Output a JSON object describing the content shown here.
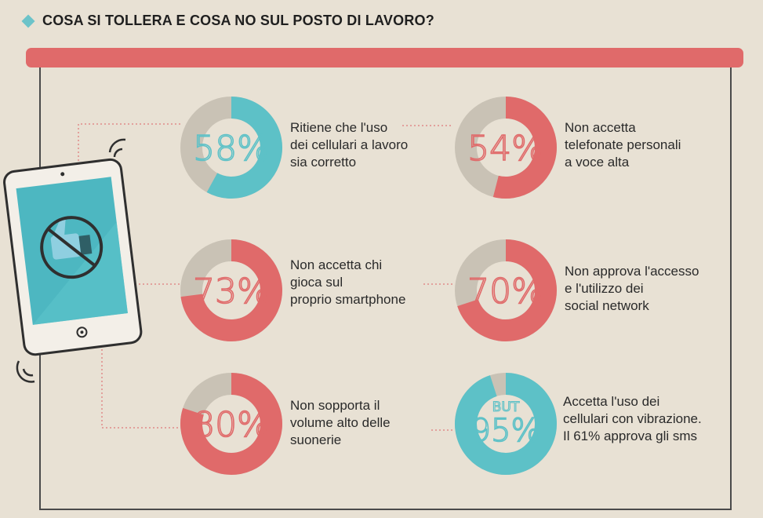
{
  "title": "COSA SI TOLLERA E COSA NO SUL POSTO DI LAVORO?",
  "colors": {
    "red": "#e06a6a",
    "teal": "#5dc1c7",
    "grey": "#c9c2b5",
    "background": "#e8e1d4"
  },
  "chart_data": {
    "type": "pie",
    "title": "COSA SI TOLLERA E COSA NO SUL POSTO DI LAVORO?",
    "items": [
      {
        "value": 58,
        "label_text": "58%",
        "color": "#5dc1c7",
        "lines": [
          "Ritiene che l'uso",
          "dei cellulari a lavoro",
          "sia corretto"
        ]
      },
      {
        "value": 54,
        "label_text": "54%",
        "color": "#e06a6a",
        "lines": [
          "Non accetta",
          "telefonate personali",
          "a voce alta"
        ]
      },
      {
        "value": 73,
        "label_text": "73%",
        "color": "#e06a6a",
        "lines": [
          "Non accetta chi",
          "gioca sul",
          "proprio smartphone"
        ]
      },
      {
        "value": 70,
        "label_text": "70%",
        "color": "#e06a6a",
        "lines": [
          "Non approva l'accesso",
          "e l'utilizzo dei",
          "social network"
        ]
      },
      {
        "value": 80,
        "label_text": "80%",
        "color": "#e06a6a",
        "lines": [
          "Non sopporta il",
          "volume alto delle",
          "suonerie"
        ]
      },
      {
        "value": 95,
        "label_text": "95%",
        "prefix": "BUT",
        "color": "#5dc1c7",
        "lines": [
          "Accetta l'uso dei",
          "cellulari con vibrazione.",
          "Il 61% approva gli sms"
        ]
      }
    ]
  }
}
